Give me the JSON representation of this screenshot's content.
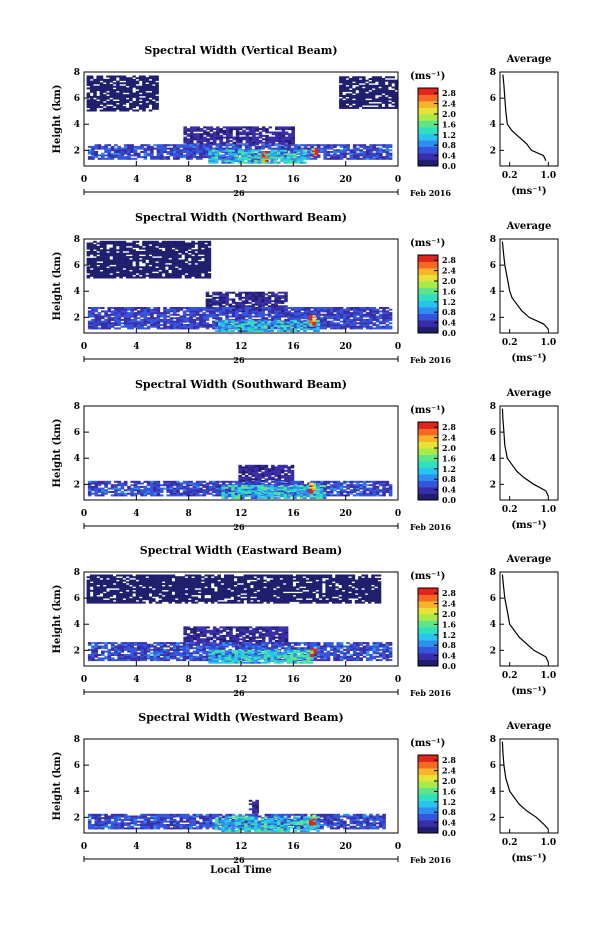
{
  "chart_data": [
    {
      "type": "heatmap",
      "title": "Spectral Width (Vertical Beam)",
      "ylabel": "Height (km)",
      "xlim": [
        0,
        24
      ],
      "ylim": [
        0.8,
        8
      ],
      "xticks": [
        "0",
        "4",
        "8",
        "12",
        "16",
        "20",
        "0"
      ],
      "yticks": [
        "2",
        "4",
        "6",
        "8"
      ],
      "date_label": "26",
      "date_suffix": "Feb 2016",
      "colorbar": {
        "unit": "(ms⁻¹)",
        "ticks": [
          "0.0",
          "0.4",
          "0.8",
          "1.2",
          "1.6",
          "2.0",
          "2.4",
          "2.8"
        ],
        "range": [
          0,
          3.0
        ]
      },
      "cells": [
        {
          "t0": 0.2,
          "t1": 5.5,
          "h0": 5.0,
          "h1": 7.6,
          "v": 0.15
        },
        {
          "t0": 19.5,
          "t1": 23.9,
          "h0": 5.2,
          "h1": 7.6,
          "v": 0.15
        },
        {
          "t0": 7.6,
          "t1": 16.0,
          "h0": 2.4,
          "h1": 3.7,
          "v": 0.3
        },
        {
          "t0": 0.3,
          "t1": 23.5,
          "h0": 1.3,
          "h1": 2.4,
          "v": 0.55
        },
        {
          "t0": 9.5,
          "t1": 17.0,
          "h0": 1.0,
          "h1": 2.0,
          "v": 1.2
        },
        {
          "t0": 13.6,
          "t1": 14.1,
          "h0": 1.0,
          "h1": 1.9,
          "v": 2.5
        },
        {
          "t0": 17.4,
          "t1": 17.8,
          "h0": 1.5,
          "h1": 2.1,
          "v": 2.7
        }
      ],
      "average": {
        "xlabel": "(ms⁻¹)",
        "title": "Average",
        "xticks": [
          "0.2",
          "1.0"
        ],
        "xlim": [
          0,
          1.2
        ],
        "profile": [
          [
            0.95,
            1.2
          ],
          [
            0.9,
            1.6
          ],
          [
            0.65,
            2.0
          ],
          [
            0.55,
            2.5
          ],
          [
            0.4,
            3.0
          ],
          [
            0.25,
            3.5
          ],
          [
            0.15,
            4.0
          ],
          [
            0.12,
            5.0
          ],
          [
            0.1,
            6.0
          ],
          [
            0.08,
            7.0
          ],
          [
            0.06,
            7.8
          ]
        ]
      }
    },
    {
      "type": "heatmap",
      "title": "Spectral Width (Northward Beam)",
      "ylabel": "Height (km)",
      "xlim": [
        0,
        24
      ],
      "ylim": [
        0.8,
        8
      ],
      "xticks": [
        "0",
        "4",
        "8",
        "12",
        "16",
        "20",
        "0"
      ],
      "yticks": [
        "2",
        "4",
        "6",
        "8"
      ],
      "date_label": "26",
      "date_suffix": "Feb 2016",
      "colorbar": {
        "unit": "(ms⁻¹)",
        "ticks": [
          "0.0",
          "0.4",
          "0.8",
          "1.2",
          "1.6",
          "2.0",
          "2.4",
          "2.8"
        ],
        "range": [
          0,
          3.0
        ]
      },
      "cells": [
        {
          "t0": 0.2,
          "t1": 9.5,
          "h0": 5.0,
          "h1": 7.8,
          "v": 0.15
        },
        {
          "t0": 9.3,
          "t1": 15.5,
          "h0": 2.4,
          "h1": 3.9,
          "v": 0.25
        },
        {
          "t0": 0.3,
          "t1": 23.5,
          "h0": 1.1,
          "h1": 2.7,
          "v": 0.5
        },
        {
          "t0": 10.0,
          "t1": 18.0,
          "h0": 0.9,
          "h1": 1.8,
          "v": 1.1
        },
        {
          "t0": 17.2,
          "t1": 17.7,
          "h0": 1.4,
          "h1": 2.1,
          "v": 2.7
        }
      ],
      "average": {
        "xlabel": "(ms⁻¹)",
        "title": "Average",
        "xticks": [
          "0.2",
          "1.0"
        ],
        "xlim": [
          0,
          1.2
        ],
        "profile": [
          [
            1.0,
            1.1
          ],
          [
            0.9,
            1.5
          ],
          [
            0.6,
            2.0
          ],
          [
            0.45,
            2.5
          ],
          [
            0.35,
            3.0
          ],
          [
            0.25,
            3.5
          ],
          [
            0.2,
            4.0
          ],
          [
            0.15,
            5.0
          ],
          [
            0.1,
            6.0
          ],
          [
            0.07,
            7.0
          ],
          [
            0.05,
            7.8
          ]
        ]
      }
    },
    {
      "type": "heatmap",
      "title": "Spectral Width (Southward Beam)",
      "ylabel": "Height (km)",
      "xlim": [
        0,
        24
      ],
      "ylim": [
        0.8,
        8
      ],
      "xticks": [
        "0",
        "4",
        "8",
        "12",
        "16",
        "20",
        "0"
      ],
      "yticks": [
        "2",
        "4",
        "6",
        "8"
      ],
      "date_label": "26",
      "date_suffix": "Feb 2016",
      "colorbar": {
        "unit": "(ms⁻¹)",
        "ticks": [
          "0.0",
          "0.4",
          "0.8",
          "1.2",
          "1.6",
          "2.0",
          "2.4",
          "2.8"
        ],
        "range": [
          0,
          3.0
        ]
      },
      "cells": [
        {
          "t0": 11.8,
          "t1": 16.0,
          "h0": 2.2,
          "h1": 3.4,
          "v": 0.3
        },
        {
          "t0": 0.3,
          "t1": 23.5,
          "h0": 1.1,
          "h1": 2.2,
          "v": 0.55
        },
        {
          "t0": 10.5,
          "t1": 18.5,
          "h0": 0.9,
          "h1": 1.9,
          "v": 1.2
        },
        {
          "t0": 17.2,
          "t1": 17.7,
          "h0": 1.3,
          "h1": 2.0,
          "v": 2.7
        }
      ],
      "average": {
        "xlabel": "(ms⁻¹)",
        "title": "Average",
        "xticks": [
          "0.2",
          "1.0"
        ],
        "xlim": [
          0,
          1.2
        ],
        "profile": [
          [
            1.0,
            1.1
          ],
          [
            0.95,
            1.5
          ],
          [
            0.7,
            2.0
          ],
          [
            0.5,
            2.5
          ],
          [
            0.35,
            3.0
          ],
          [
            0.25,
            3.5
          ],
          [
            0.15,
            4.0
          ],
          [
            0.1,
            5.0
          ],
          [
            0.08,
            6.0
          ],
          [
            0.06,
            7.0
          ],
          [
            0.05,
            7.8
          ]
        ]
      }
    },
    {
      "type": "heatmap",
      "title": "Spectral Width (Eastward Beam)",
      "ylabel": "Height (km)",
      "xlim": [
        0,
        24
      ],
      "ylim": [
        0.8,
        8
      ],
      "xticks": [
        "0",
        "4",
        "8",
        "12",
        "16",
        "20",
        "0"
      ],
      "yticks": [
        "2",
        "4",
        "6",
        "8"
      ],
      "date_label": "26",
      "date_suffix": "Feb 2016",
      "colorbar": {
        "unit": "(ms⁻¹)",
        "ticks": [
          "0.0",
          "0.4",
          "0.8",
          "1.2",
          "1.6",
          "2.0",
          "2.4",
          "2.8"
        ],
        "range": [
          0,
          3.0
        ]
      },
      "cells": [
        {
          "t0": 0.2,
          "t1": 22.5,
          "h0": 5.6,
          "h1": 7.8,
          "v": 0.15
        },
        {
          "t0": 7.6,
          "t1": 15.6,
          "h0": 2.4,
          "h1": 3.7,
          "v": 0.3
        },
        {
          "t0": 0.3,
          "t1": 23.5,
          "h0": 1.2,
          "h1": 2.5,
          "v": 0.55
        },
        {
          "t0": 9.5,
          "t1": 17.5,
          "h0": 1.0,
          "h1": 2.0,
          "v": 1.2
        },
        {
          "t0": 17.3,
          "t1": 17.8,
          "h0": 1.5,
          "h1": 2.1,
          "v": 2.7
        }
      ],
      "average": {
        "xlabel": "(ms⁻¹)",
        "title": "Average",
        "xticks": [
          "0.2",
          "1.0"
        ],
        "xlim": [
          0,
          1.2
        ],
        "profile": [
          [
            1.0,
            1.1
          ],
          [
            0.95,
            1.5
          ],
          [
            0.7,
            2.0
          ],
          [
            0.55,
            2.5
          ],
          [
            0.4,
            3.0
          ],
          [
            0.3,
            3.5
          ],
          [
            0.2,
            4.0
          ],
          [
            0.15,
            5.0
          ],
          [
            0.1,
            6.0
          ],
          [
            0.07,
            7.0
          ],
          [
            0.05,
            7.8
          ]
        ]
      }
    },
    {
      "type": "heatmap",
      "title": "Spectral Width (Westward Beam)",
      "ylabel": "Height (km)",
      "xlim": [
        0,
        24
      ],
      "ylim": [
        0.8,
        8
      ],
      "xticks": [
        "0",
        "4",
        "8",
        "12",
        "16",
        "20",
        "0"
      ],
      "yticks": [
        "2",
        "4",
        "6",
        "8"
      ],
      "date_label": "26",
      "date_suffix": "Feb 2016",
      "colorbar": {
        "unit": "(ms⁻¹)",
        "ticks": [
          "0.0",
          "0.4",
          "0.8",
          "1.2",
          "1.6",
          "2.0",
          "2.4",
          "2.8"
        ],
        "range": [
          0,
          3.0
        ]
      },
      "xlabel": "Local Time",
      "cells": [
        {
          "t0": 12.6,
          "t1": 13.3,
          "h0": 2.3,
          "h1": 3.3,
          "v": 0.3
        },
        {
          "t0": 0.3,
          "t1": 23.0,
          "h0": 1.1,
          "h1": 2.2,
          "v": 0.55
        },
        {
          "t0": 10.0,
          "t1": 18.0,
          "h0": 0.9,
          "h1": 2.0,
          "v": 1.2
        },
        {
          "t0": 17.2,
          "t1": 17.7,
          "h0": 1.4,
          "h1": 2.1,
          "v": 2.7
        }
      ],
      "average": {
        "xlabel": "(ms⁻¹)",
        "title": "Average",
        "xticks": [
          "0.2",
          "1.0"
        ],
        "xlim": [
          0,
          1.2
        ],
        "profile": [
          [
            1.0,
            1.1
          ],
          [
            0.9,
            1.5
          ],
          [
            0.75,
            2.0
          ],
          [
            0.55,
            2.5
          ],
          [
            0.4,
            3.0
          ],
          [
            0.3,
            3.5
          ],
          [
            0.2,
            4.0
          ],
          [
            0.12,
            5.0
          ],
          [
            0.08,
            6.0
          ],
          [
            0.06,
            7.0
          ],
          [
            0.05,
            7.8
          ]
        ]
      }
    }
  ]
}
